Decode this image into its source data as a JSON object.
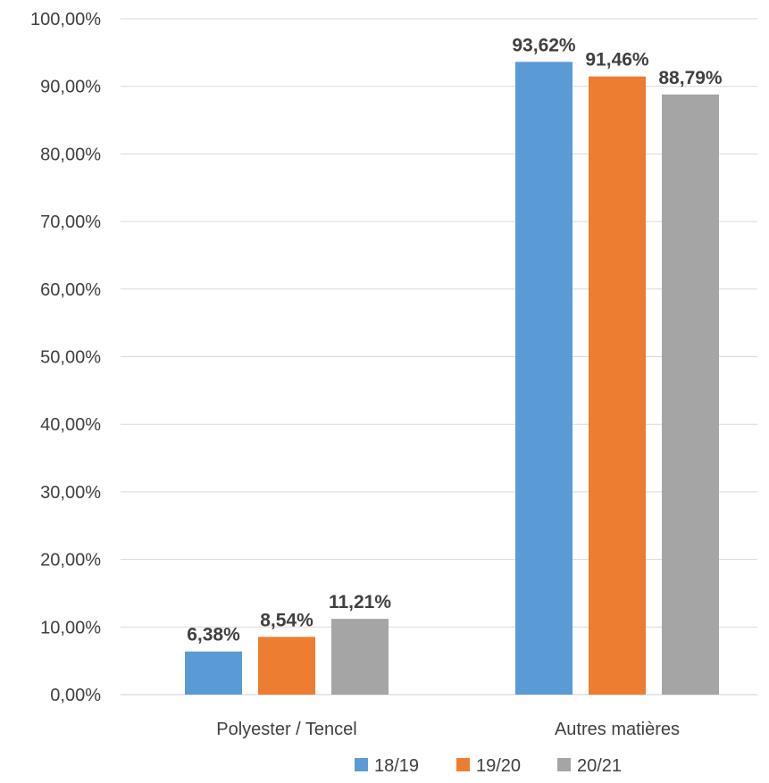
{
  "chart_data": {
    "type": "bar",
    "categories": [
      "Polyester / Tencel",
      "Autres matières"
    ],
    "series": [
      {
        "name": "18/19",
        "values": [
          6.38,
          93.62
        ],
        "labels": [
          "6,38%",
          "93,62%"
        ],
        "color": "#5b9bd5"
      },
      {
        "name": "19/20",
        "values": [
          8.54,
          91.46
        ],
        "labels": [
          "8,54%",
          "91,46%"
        ],
        "color": "#ed7d31"
      },
      {
        "name": "20/21",
        "values": [
          11.21,
          88.79
        ],
        "labels": [
          "11,21%",
          "88,79%"
        ],
        "color": "#a5a5a5"
      }
    ],
    "ylim": [
      0,
      100
    ],
    "yticks": [
      0,
      10,
      20,
      30,
      40,
      50,
      60,
      70,
      80,
      90,
      100
    ],
    "ytick_labels": [
      "0,00%",
      "10,00%",
      "20,00%",
      "30,00%",
      "40,00%",
      "50,00%",
      "60,00%",
      "70,00%",
      "80,00%",
      "90,00%",
      "100,00%"
    ],
    "grid": true,
    "legend_position": "bottom"
  }
}
